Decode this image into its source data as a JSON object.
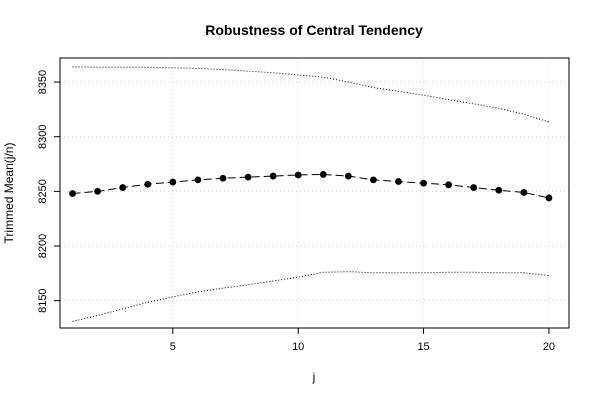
{
  "chart_data": {
    "type": "line",
    "title": "Robustness of Central Tendency",
    "xlabel": "j",
    "ylabel": "Trimmed Mean(j/n)",
    "xlim": [
      0.5,
      20.8
    ],
    "ylim": [
      8125,
      8372
    ],
    "xticks": [
      5,
      10,
      15,
      20
    ],
    "yticks": [
      8150,
      8200,
      8250,
      8300,
      8350
    ],
    "grid": true,
    "x": [
      1,
      2,
      3,
      4,
      5,
      6,
      7,
      8,
      9,
      10,
      11,
      12,
      13,
      14,
      15,
      16,
      17,
      18,
      19,
      20
    ],
    "series": [
      {
        "style": "dashed-with-points",
        "values": [
          8248,
          8250,
          8253.5,
          8256.5,
          8258.5,
          8260.5,
          8262,
          8263,
          8264,
          8265,
          8265.5,
          8264,
          8260.5,
          8259,
          8257.5,
          8256,
          8253.5,
          8251,
          8249,
          8244
        ]
      },
      {
        "style": "dotted",
        "values": [
          8364,
          8363.5,
          8363.5,
          8363.5,
          8363,
          8362.5,
          8361.5,
          8360,
          8358.5,
          8356.5,
          8354.5,
          8350,
          8345,
          8341.5,
          8338,
          8334,
          8330,
          8326,
          8320.5,
          8313.5
        ]
      },
      {
        "style": "dotted",
        "values": [
          8131,
          8136.5,
          8142.5,
          8148.5,
          8153.5,
          8158,
          8161.5,
          8164.5,
          8168,
          8171.5,
          8176,
          8176.5,
          8175.5,
          8175.5,
          8175.5,
          8176,
          8176,
          8175.5,
          8175.5,
          8173
        ]
      }
    ]
  }
}
